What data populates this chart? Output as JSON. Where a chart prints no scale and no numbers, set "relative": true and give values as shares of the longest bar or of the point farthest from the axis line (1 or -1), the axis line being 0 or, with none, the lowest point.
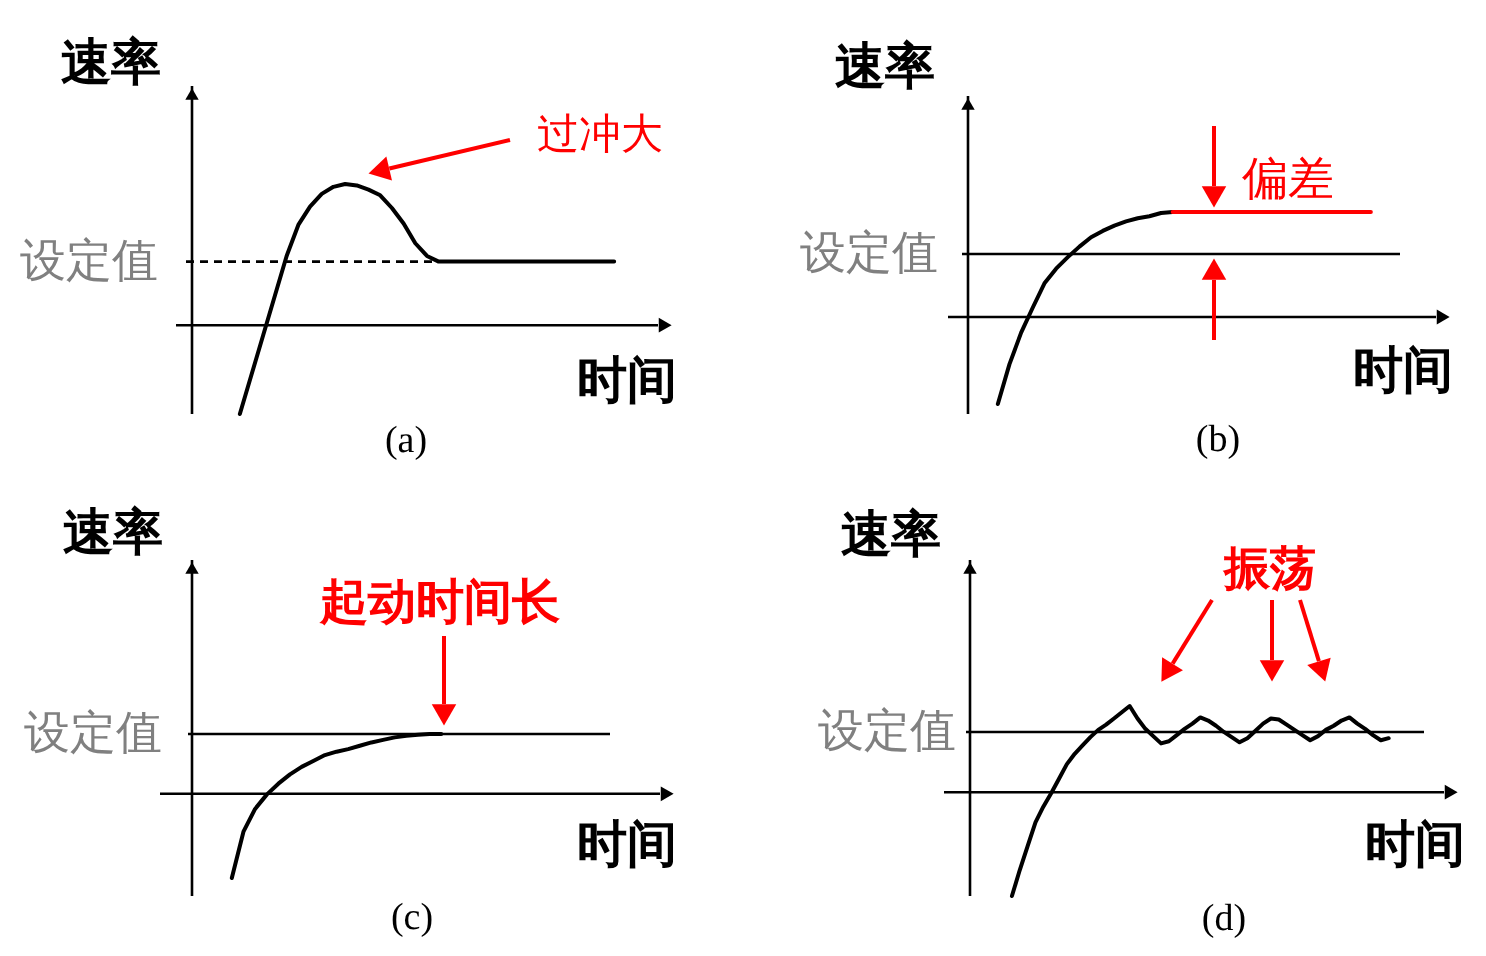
{
  "chart_data": [
    {
      "type": "line",
      "title": "(a)",
      "xlabel": "时间",
      "ylabel": "速率",
      "relative": true,
      "tick_labels": false,
      "line_style": "solid",
      "categories": [
        null,
        null,
        null,
        null,
        null,
        null,
        null,
        null,
        null,
        null,
        null,
        null,
        null,
        null,
        null,
        null,
        null,
        null,
        null,
        null,
        null,
        null,
        null,
        null,
        null,
        null,
        null,
        null,
        null,
        null,
        null,
        null,
        null
      ],
      "series": [
        {
          "color": "#000000",
          "values": [
            -0.63,
            -0.35,
            -0.07,
            0.21,
            0.49,
            0.71,
            0.84,
            0.93,
            0.98,
            1.0,
            0.99,
            0.96,
            0.92,
            0.83,
            0.72,
            0.58,
            0.49,
            0.45,
            0.45,
            0.45,
            0.45,
            0.45,
            0.45,
            0.45,
            0.45,
            0.45,
            0.45,
            0.45,
            0.45,
            0.45,
            0.45,
            0.45,
            0.45
          ]
        }
      ],
      "ref_lines": [
        {
          "axis": "y",
          "value": 0.45,
          "label": "设定值",
          "color": "#000000",
          "line_style": "dashed"
        }
      ],
      "annotations": [
        "过冲大"
      ]
    },
    {
      "type": "line",
      "title": "(b)",
      "xlabel": "时间",
      "ylabel": "速率",
      "relative": true,
      "tick_labels": false,
      "line_style": "solid",
      "categories": [
        null,
        null,
        null,
        null,
        null,
        null,
        null,
        null,
        null,
        null,
        null,
        null,
        null,
        null,
        null,
        null,
        null,
        null,
        null,
        null,
        null,
        null,
        null,
        null,
        null,
        null,
        null,
        null,
        null,
        null,
        null,
        null,
        null,
        null,
        null
      ],
      "series": [
        {
          "color": "#000000",
          "values": [
            -0.83,
            -0.45,
            -0.15,
            0.09,
            0.32,
            0.46,
            0.57,
            0.67,
            0.76,
            0.82,
            0.87,
            0.91,
            0.94,
            0.96,
            0.99,
            1.0,
            null,
            null,
            null,
            null,
            null,
            null,
            null,
            null,
            null,
            null,
            null,
            null,
            null,
            null,
            null,
            null,
            null,
            null,
            null
          ]
        },
        {
          "color": "#ff0000",
          "values": [
            null,
            null,
            null,
            null,
            null,
            null,
            null,
            null,
            null,
            null,
            null,
            null,
            null,
            null,
            null,
            1.0,
            1.0,
            1.0,
            1.0,
            1.0,
            1.0,
            1.0,
            1.0,
            1.0,
            1.0,
            1.0,
            1.0,
            1.0,
            1.0,
            1.0,
            1.0,
            1.0,
            1.0,
            null,
            null
          ]
        }
      ],
      "ref_lines": [
        {
          "axis": "y",
          "value": 0.6,
          "label": "设定值",
          "color": "#000000",
          "line_style": "solid"
        }
      ],
      "annotations": [
        "偏差"
      ]
    },
    {
      "type": "line",
      "title": "(c)",
      "xlabel": "时间",
      "ylabel": "速率",
      "relative": true,
      "tick_labels": false,
      "line_style": "solid",
      "categories": [
        null,
        null,
        null,
        null,
        null,
        null,
        null,
        null,
        null,
        null,
        null,
        null,
        null,
        null,
        null,
        null,
        null,
        null,
        null,
        null,
        null,
        null,
        null,
        null,
        null,
        null,
        null,
        null,
        null,
        null,
        null,
        null,
        null
      ],
      "series": [
        {
          "color": "#000000",
          "values": [
            -1.0,
            -0.45,
            -0.18,
            -0.01,
            0.12,
            0.23,
            0.32,
            0.39,
            0.46,
            0.5,
            0.53,
            0.57,
            0.61,
            0.64,
            0.67,
            0.69,
            0.7,
            0.71,
            0.71,
            null,
            null,
            null,
            null,
            null,
            null,
            null,
            null,
            null,
            null,
            null,
            null,
            null,
            null
          ]
        }
      ],
      "ref_lines": [
        {
          "axis": "y",
          "value": 0.71,
          "label": "设定值",
          "color": "#000000",
          "line_style": "solid"
        }
      ],
      "annotations": [
        "起动时间长"
      ]
    },
    {
      "type": "line",
      "title": "(d)",
      "xlabel": "时间",
      "ylabel": "速率",
      "relative": true,
      "tick_labels": false,
      "line_style": "solid",
      "categories": [
        null,
        null,
        null,
        null,
        null,
        null,
        null,
        null,
        null,
        null,
        null,
        null,
        null,
        null,
        null,
        null,
        null,
        null,
        null,
        null,
        null,
        null,
        null,
        null,
        null,
        null,
        null,
        null,
        null,
        null,
        null,
        null,
        null,
        null,
        null,
        null,
        null,
        null,
        null,
        null,
        null,
        null,
        null,
        null,
        null,
        null,
        null,
        null,
        null,
        null,
        null,
        null,
        null
      ],
      "series": [
        {
          "color": "#000000",
          "values": [
            -1.0,
            -0.75,
            -0.52,
            -0.29,
            -0.14,
            -0.01,
            0.13,
            0.27,
            0.37,
            0.45,
            0.53,
            0.6,
            0.65,
            0.71,
            0.77,
            0.83,
            0.71,
            0.61,
            0.54,
            0.47,
            0.49,
            0.55,
            0.61,
            0.66,
            0.72,
            0.69,
            0.64,
            0.58,
            0.53,
            0.48,
            0.52,
            0.59,
            0.66,
            0.71,
            0.7,
            0.65,
            0.6,
            0.55,
            0.5,
            0.54,
            0.6,
            0.64,
            0.69,
            0.72,
            0.66,
            0.61,
            0.55,
            0.5,
            0.52,
            null,
            null,
            null,
            null
          ]
        }
      ],
      "ref_lines": [
        {
          "axis": "y",
          "value": 0.58,
          "label": "设定值",
          "color": "#000000",
          "line_style": "solid"
        }
      ],
      "annotations": [
        "振荡"
      ]
    }
  ]
}
